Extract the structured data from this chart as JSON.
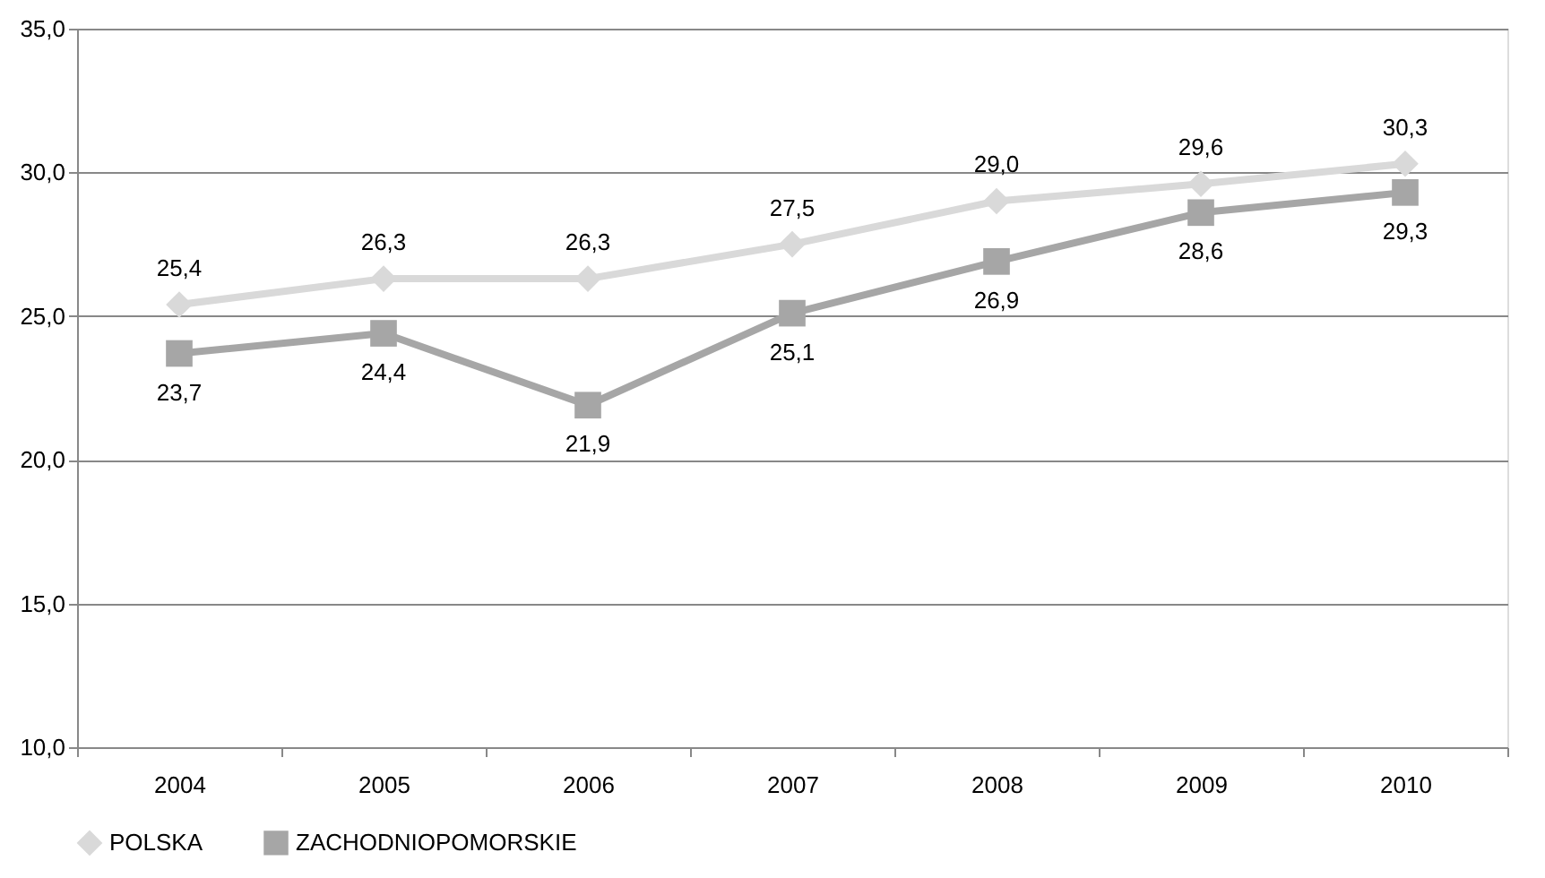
{
  "chart_data": {
    "type": "line",
    "categories": [
      "2004",
      "2005",
      "2006",
      "2007",
      "2008",
      "2009",
      "2010"
    ],
    "series": [
      {
        "name": "POLSKA",
        "color": "#d9d9d9",
        "marker": "diamond",
        "values": [
          25.4,
          26.3,
          26.3,
          27.5,
          29.0,
          29.6,
          30.3
        ],
        "value_labels": [
          "25,4",
          "26,3",
          "26,3",
          "27,5",
          "29,0",
          "29,6",
          "30,3"
        ]
      },
      {
        "name": "ZACHODNIOPOMORSKIE",
        "color": "#a6a6a6",
        "marker": "square",
        "values": [
          23.7,
          24.4,
          21.9,
          25.1,
          26.9,
          28.6,
          29.3
        ],
        "value_labels": [
          "23,7",
          "24,4",
          "21,9",
          "25,1",
          "26,9",
          "28,6",
          "29,3"
        ]
      }
    ],
    "ylim": [
      10,
      35
    ],
    "yticks": [
      {
        "value": 10,
        "label": "10,0"
      },
      {
        "value": 15,
        "label": "15,0"
      },
      {
        "value": 20,
        "label": "20,0"
      },
      {
        "value": 25,
        "label": "25,0"
      },
      {
        "value": 30,
        "label": "30,0"
      },
      {
        "value": 35,
        "label": "35,0"
      }
    ],
    "grid": "y",
    "legend": "bottom",
    "line_style": "solid"
  }
}
